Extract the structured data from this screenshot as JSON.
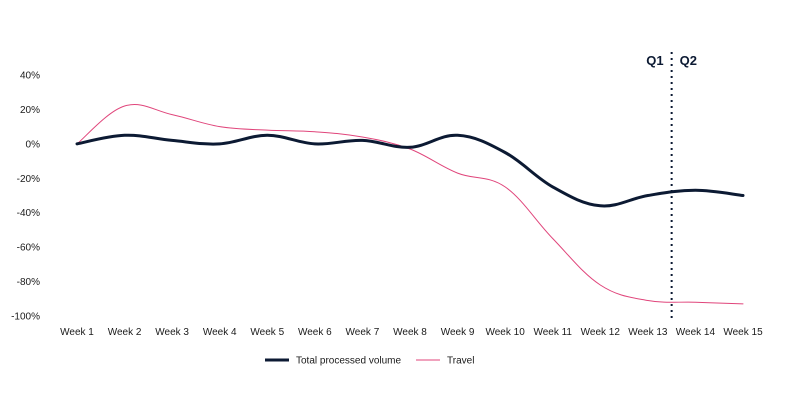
{
  "chart_data": {
    "type": "line",
    "categories": [
      "Week 1",
      "Week 2",
      "Week 3",
      "Week 4",
      "Week 5",
      "Week 6",
      "Week 7",
      "Week 8",
      "Week 9",
      "Week 10",
      "Week 11",
      "Week 12",
      "Week 13",
      "Week 14",
      "Week 15"
    ],
    "series": [
      {
        "name": "Total processed volume",
        "color": "#0c1a33",
        "values": [
          0,
          5,
          2,
          0,
          5,
          0,
          2,
          -2,
          5,
          -5,
          -25,
          -36,
          -30,
          -27,
          -30
        ]
      },
      {
        "name": "Travel",
        "color": "#e0457b",
        "values": [
          0,
          22,
          17,
          10,
          8,
          7,
          4,
          -3,
          -17,
          -25,
          -55,
          -82,
          -91,
          -92,
          -93
        ]
      }
    ],
    "y_ticks": [
      "40%",
      "20%",
      "0%",
      "-20%",
      "-40%",
      "-60%",
      "-80%",
      "-100%"
    ],
    "ylim": [
      -100,
      40
    ],
    "xlabel": "",
    "ylabel": "",
    "title": "",
    "grid": false,
    "legend_position": "bottom-center",
    "annotations": {
      "divider_between": [
        "Week 13",
        "Week 14"
      ],
      "divider_style": "dotted",
      "left_label": "Q1",
      "right_label": "Q2"
    }
  }
}
